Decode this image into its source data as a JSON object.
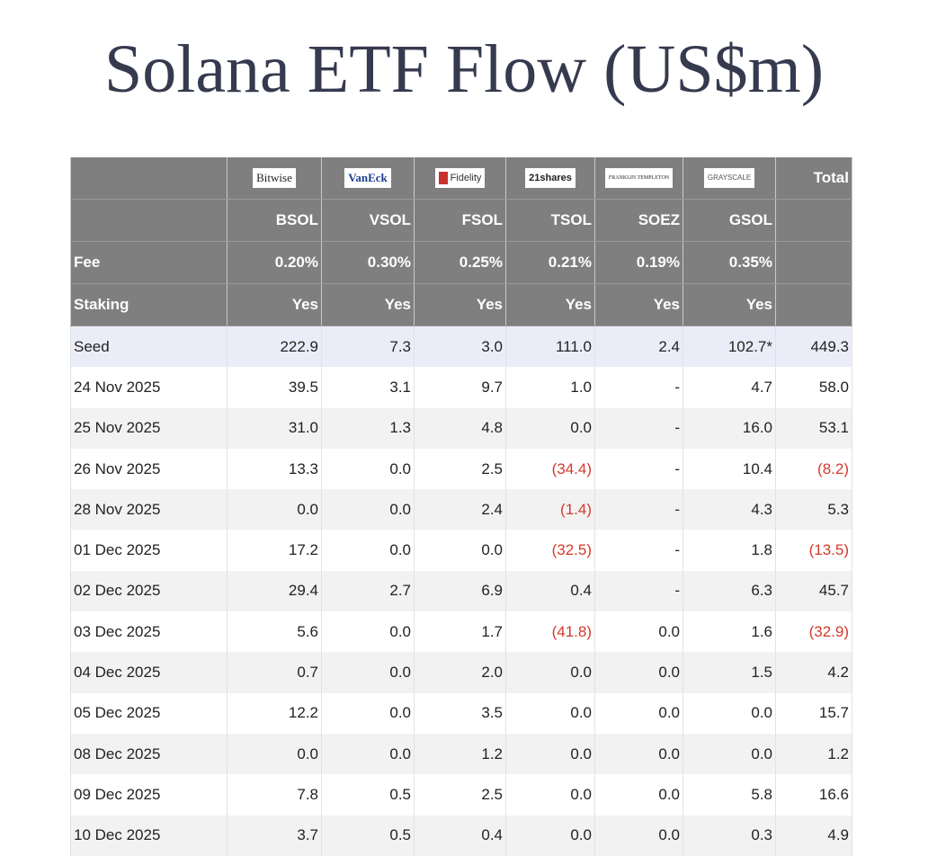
{
  "title": "Solana ETF Flow (US$m)",
  "table": {
    "logos": [
      "Bitwise",
      "VanEck",
      "Fidelity",
      "21shares",
      "FRANKLIN TEMPLETON",
      "GRAYSCALE"
    ],
    "total_label": "Total",
    "tickers": [
      "BSOL",
      "VSOL",
      "FSOL",
      "TSOL",
      "SOEZ",
      "GSOL"
    ],
    "fee": {
      "label": "Fee",
      "values": [
        "0.20%",
        "0.30%",
        "0.25%",
        "0.21%",
        "0.19%",
        "0.35%"
      ]
    },
    "staking": {
      "label": "Staking",
      "values": [
        "Yes",
        "Yes",
        "Yes",
        "Yes",
        "Yes",
        "Yes"
      ]
    },
    "rows": [
      [
        "Seed",
        "222.9",
        "7.3",
        "3.0",
        "111.0",
        "2.4",
        "102.7*",
        "449.3"
      ],
      [
        "24 Nov 2025",
        "39.5",
        "3.1",
        "9.7",
        "1.0",
        "-",
        "4.7",
        "58.0"
      ],
      [
        "25 Nov 2025",
        "31.0",
        "1.3",
        "4.8",
        "0.0",
        "-",
        "16.0",
        "53.1"
      ],
      [
        "26 Nov 2025",
        "13.3",
        "0.0",
        "2.5",
        "(34.4)",
        "-",
        "10.4",
        "(8.2)"
      ],
      [
        "28 Nov 2025",
        "0.0",
        "0.0",
        "2.4",
        "(1.4)",
        "-",
        "4.3",
        "5.3"
      ],
      [
        "01 Dec 2025",
        "17.2",
        "0.0",
        "0.0",
        "(32.5)",
        "-",
        "1.8",
        "(13.5)"
      ],
      [
        "02 Dec 2025",
        "29.4",
        "2.7",
        "6.9",
        "0.4",
        "-",
        "6.3",
        "45.7"
      ],
      [
        "03 Dec 2025",
        "5.6",
        "0.0",
        "1.7",
        "(41.8)",
        "0.0",
        "1.6",
        "(32.9)"
      ],
      [
        "04 Dec 2025",
        "0.7",
        "0.0",
        "2.0",
        "0.0",
        "0.0",
        "1.5",
        "4.2"
      ],
      [
        "05 Dec 2025",
        "12.2",
        "0.0",
        "3.5",
        "0.0",
        "0.0",
        "0.0",
        "15.7"
      ],
      [
        "08 Dec 2025",
        "0.0",
        "0.0",
        "1.2",
        "0.0",
        "0.0",
        "0.0",
        "1.2"
      ],
      [
        "09 Dec 2025",
        "7.8",
        "0.5",
        "2.5",
        "0.0",
        "0.0",
        "5.8",
        "16.6"
      ],
      [
        "10 Dec 2025",
        "3.7",
        "0.5",
        "0.4",
        "0.0",
        "0.0",
        "0.3",
        "4.9"
      ]
    ]
  }
}
